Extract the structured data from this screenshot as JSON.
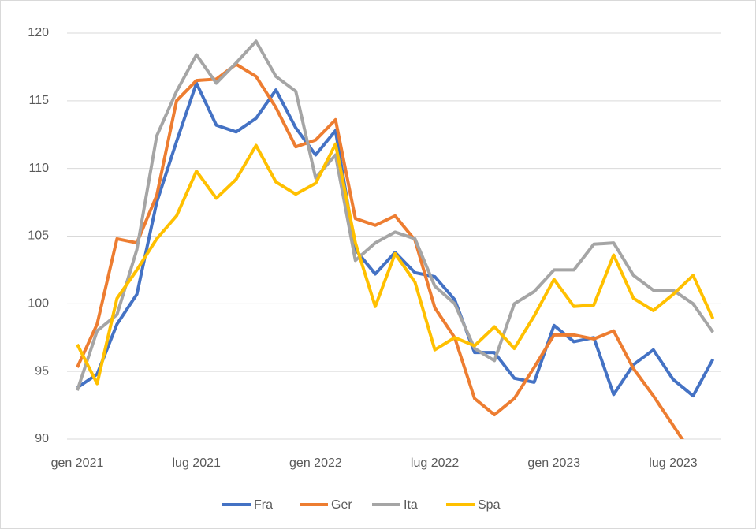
{
  "chart_data": {
    "type": "line",
    "categories": [
      "gen 2021",
      null,
      null,
      null,
      null,
      null,
      "lug 2021",
      null,
      null,
      null,
      null,
      null,
      "gen 2022",
      null,
      null,
      null,
      null,
      null,
      "lug 2022",
      null,
      null,
      null,
      null,
      null,
      "gen 2023",
      null,
      null,
      null,
      null,
      null,
      "lug 2023",
      null,
      null
    ],
    "series": [
      {
        "name": "Fra",
        "color": "#4472c4",
        "values": [
          93.8,
          94.8,
          98.5,
          100.7,
          107.5,
          112,
          116.3,
          113.2,
          112.7,
          113.7,
          115.8,
          113,
          111,
          112.8,
          104,
          102.2,
          103.8,
          102.3,
          102,
          100.3,
          96.4,
          96.4,
          94.5,
          94.2,
          98.4,
          97.2,
          97.5,
          93.3,
          95.5,
          96.6,
          94.4,
          93.2,
          95.9
        ]
      },
      {
        "name": "Ger",
        "color": "#ed7d31",
        "values": [
          95.3,
          98.5,
          104.8,
          104.5,
          108,
          115,
          116.5,
          116.6,
          117.7,
          116.8,
          114.5,
          111.6,
          112.1,
          113.6,
          106.3,
          105.8,
          106.5,
          104.7,
          99.7,
          97.5,
          93,
          91.8,
          93,
          95.3,
          97.7,
          97.7,
          97.4,
          98,
          95.2,
          93.2,
          91,
          88.8,
          87.5
        ]
      },
      {
        "name": "Ita",
        "color": "#a5a5a5",
        "values": [
          93.6,
          98,
          99.2,
          104,
          112.4,
          115.7,
          118.4,
          116.3,
          117.8,
          119.4,
          116.8,
          115.7,
          109.3,
          111,
          103.2,
          104.5,
          105.3,
          104.8,
          101.3,
          100,
          96.7,
          95.8,
          100,
          100.9,
          102.5,
          102.5,
          104.4,
          104.5,
          102.1,
          101,
          101,
          100,
          97.9
        ]
      },
      {
        "name": "Spa",
        "color": "#ffc000",
        "values": [
          97,
          94.1,
          100.4,
          102.5,
          104.8,
          106.5,
          109.8,
          107.8,
          109.2,
          111.7,
          109,
          108.1,
          108.9,
          111.8,
          104.5,
          99.8,
          103.7,
          101.6,
          96.6,
          97.5,
          96.9,
          98.3,
          96.7,
          99.1,
          101.8,
          99.8,
          99.9,
          103.6,
          100.4,
          99.5,
          100.7,
          102.1,
          98.9
        ]
      }
    ],
    "ylim": [
      90,
      120
    ],
    "yticks": [
      90,
      95,
      100,
      105,
      110,
      115,
      120
    ],
    "grid": true,
    "legend": "bottom"
  }
}
